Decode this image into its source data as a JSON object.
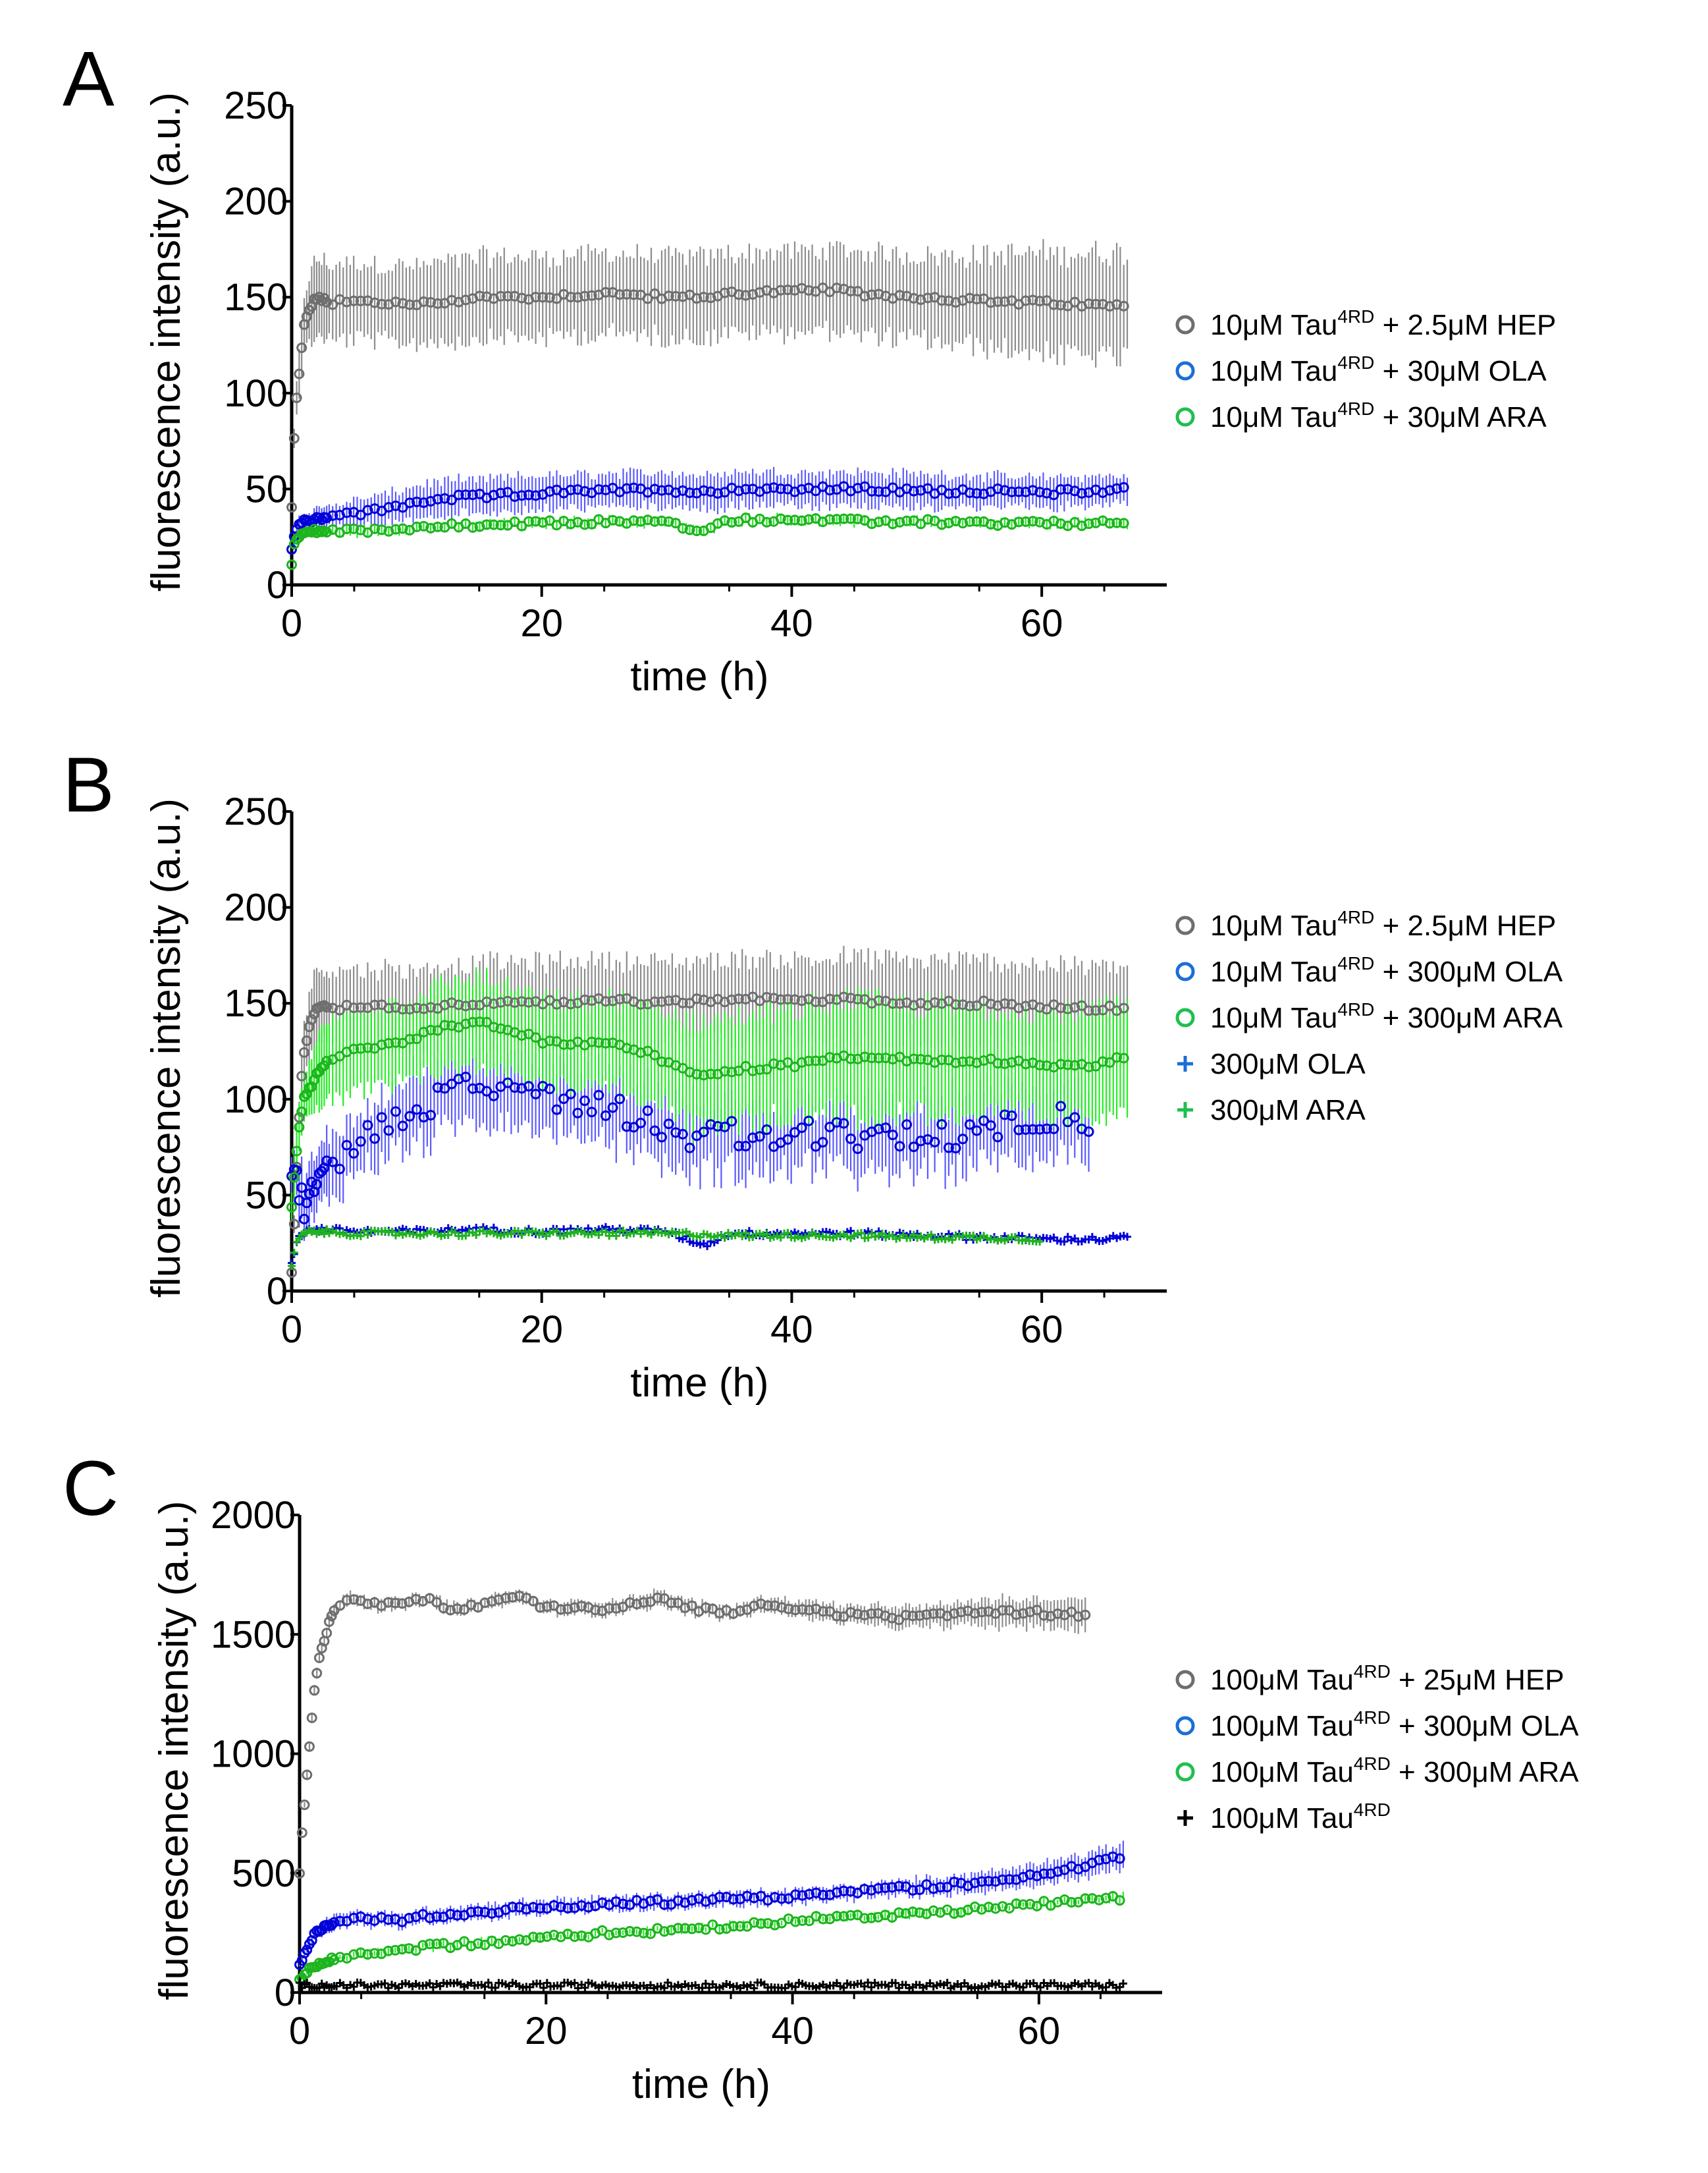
{
  "colors": {
    "hep": "#6e6e6e",
    "hep_err": "#8c8c8c",
    "ola": "#0000d8",
    "ola_err": "#5a5aff",
    "ara": "#1fb31f",
    "ara_err": "#22ee22",
    "control": "#000000",
    "axis": "#000000"
  },
  "chart_data": [
    {
      "panel": "A",
      "type": "scatter",
      "xlabel": "time (h)",
      "ylabel": "fluorescence intensity (a.u.)",
      "xlim": [
        0,
        70
      ],
      "ylim": [
        0,
        250
      ],
      "xticks": [
        0,
        20,
        40,
        60
      ],
      "yticks": [
        0,
        50,
        100,
        150,
        200,
        250
      ],
      "series": [
        {
          "key": "hep",
          "marker": "circle",
          "legend": {
            "pre": "10μM Tau",
            "sup": "4RD",
            "post": " + 2.5μM HEP"
          },
          "x": [
            0,
            0.25,
            0.5,
            0.75,
            1,
            1.5,
            2,
            3,
            5,
            10,
            15,
            20,
            25,
            30,
            33,
            35,
            40,
            43,
            45,
            50,
            55,
            60,
            67
          ],
          "y": [
            40,
            85,
            105,
            120,
            135,
            145,
            150,
            147,
            148,
            146,
            150,
            150,
            152,
            150,
            150,
            152,
            153,
            154,
            152,
            150,
            148,
            147,
            145
          ],
          "err": [
            0,
            5,
            10,
            12,
            15,
            18,
            20,
            20,
            20,
            20,
            21,
            21,
            21,
            21,
            21,
            21,
            21,
            21,
            22,
            22,
            24,
            26,
            28
          ]
        },
        {
          "key": "ola",
          "marker": "circle",
          "legend": {
            "pre": "10μM Tau",
            "sup": "4RD",
            "post": " + 30μM OLA"
          },
          "x": [
            0,
            0.25,
            0.5,
            1,
            2,
            5,
            8,
            10,
            12,
            15,
            20,
            25,
            30,
            33,
            35,
            40,
            45,
            50,
            55,
            60,
            67
          ],
          "y": [
            20,
            27,
            31,
            33,
            35,
            37,
            40,
            43,
            45,
            46,
            48,
            49,
            50,
            48,
            50,
            50,
            50,
            49,
            49,
            48,
            50
          ],
          "err": [
            0,
            3,
            4,
            4,
            5,
            7,
            8,
            9,
            9,
            9,
            9,
            9,
            9,
            9,
            9,
            9,
            9,
            9,
            8,
            8,
            7
          ]
        },
        {
          "key": "ara",
          "marker": "circle",
          "legend": {
            "pre": "10μM Tau",
            "sup": "4RD",
            "post": " + 30μM ARA"
          },
          "x": [
            0,
            0.25,
            0.5,
            1,
            2,
            5,
            10,
            15,
            20,
            25,
            30,
            33,
            35,
            40,
            45,
            50,
            55,
            60,
            67
          ],
          "y": [
            12,
            22,
            25,
            27,
            28,
            28,
            30,
            31,
            32,
            33,
            33,
            27,
            34,
            34,
            33,
            33,
            32,
            32,
            32
          ],
          "err": [
            0,
            2,
            2,
            2,
            2,
            2,
            2,
            2,
            2,
            2,
            2,
            2,
            2,
            2,
            2,
            2,
            2,
            2,
            2
          ]
        }
      ]
    },
    {
      "panel": "B",
      "type": "scatter",
      "xlabel": "time (h)",
      "ylabel": "fluorescence intensity (a.u.)",
      "xlim": [
        0,
        70
      ],
      "ylim": [
        0,
        250
      ],
      "xticks": [
        0,
        20,
        40,
        60
      ],
      "yticks": [
        0,
        50,
        100,
        150,
        200,
        250
      ],
      "series": [
        {
          "key": "hep",
          "marker": "circle",
          "legend": {
            "pre": "10μM Tau",
            "sup": "4RD",
            "post": " + 2.5μM HEP"
          },
          "x": [
            0,
            0.25,
            0.5,
            0.75,
            1,
            1.5,
            2,
            3,
            5,
            10,
            15,
            20,
            25,
            30,
            35,
            40,
            45,
            50,
            55,
            60,
            67
          ],
          "y": [
            10,
            40,
            80,
            110,
            125,
            140,
            148,
            147,
            148,
            148,
            150,
            150,
            152,
            150,
            152,
            152,
            152,
            150,
            150,
            148,
            147
          ],
          "err": [
            0,
            5,
            10,
            12,
            15,
            18,
            20,
            20,
            20,
            20,
            21,
            21,
            21,
            21,
            21,
            21,
            22,
            22,
            22,
            22,
            22
          ]
        },
        {
          "key": "ola",
          "marker": "circle",
          "legend": {
            "pre": "10μM Tau",
            "sup": "4RD",
            "post": " + 300μM OLA"
          },
          "x": [
            0,
            0.5,
            1,
            2,
            3,
            5,
            7,
            10,
            12,
            14,
            16,
            18,
            20,
            22,
            25,
            28,
            30,
            32,
            35,
            38,
            40,
            42,
            45,
            48,
            50,
            52,
            55,
            58,
            60,
            62,
            64
          ],
          "y": [
            65,
            55,
            45,
            55,
            65,
            75,
            85,
            95,
            100,
            110,
            105,
            108,
            103,
            100,
            98,
            90,
            85,
            80,
            82,
            78,
            80,
            82,
            80,
            78,
            82,
            80,
            85,
            88,
            90,
            92,
            86
          ],
          "err": [
            10,
            12,
            14,
            15,
            16,
            17,
            18,
            18,
            18,
            18,
            18,
            18,
            18,
            18,
            18,
            18,
            18,
            18,
            18,
            18,
            18,
            18,
            18,
            18,
            18,
            18,
            18,
            18,
            18,
            18,
            18
          ]
        },
        {
          "key": "ara",
          "marker": "circle",
          "legend": {
            "pre": "10μM Tau",
            "sup": "4RD",
            "post": " + 300μM ARA"
          },
          "x": [
            0,
            0.5,
            1,
            2,
            3,
            5,
            8,
            10,
            12,
            15,
            18,
            20,
            22,
            25,
            28,
            30,
            32,
            35,
            40,
            45,
            50,
            55,
            60,
            64,
            67
          ],
          "y": [
            45,
            80,
            100,
            112,
            120,
            125,
            128,
            132,
            138,
            140,
            135,
            130,
            128,
            130,
            125,
            120,
            112,
            115,
            118,
            122,
            120,
            120,
            118,
            118,
            122
          ],
          "err": [
            8,
            12,
            15,
            18,
            20,
            22,
            22,
            22,
            22,
            24,
            22,
            22,
            22,
            22,
            24,
            25,
            28,
            28,
            28,
            30,
            28,
            28,
            28,
            28,
            26
          ]
        },
        {
          "key": "ola_only",
          "marker": "plus",
          "color": "ola",
          "legend": {
            "pre": "300μM OLA",
            "sup": "",
            "post": ""
          },
          "x": [
            0,
            0.5,
            1,
            2,
            5,
            10,
            15,
            20,
            25,
            30,
            33,
            35,
            40,
            45,
            50,
            55,
            60,
            65,
            67
          ],
          "y": [
            15,
            28,
            31,
            32,
            31,
            31,
            32,
            31,
            32,
            31,
            24,
            30,
            30,
            30,
            29,
            28,
            27,
            27,
            28
          ],
          "err": [
            0,
            1,
            1,
            1,
            1,
            1,
            1,
            1,
            1,
            1,
            1,
            1,
            1,
            1,
            1,
            1,
            1,
            1,
            1
          ]
        },
        {
          "key": "ara_only",
          "marker": "plus",
          "color": "ara",
          "legend": {
            "pre": "300μM ARA",
            "sup": "",
            "post": ""
          },
          "x": [
            0,
            0.5,
            1,
            2,
            5,
            10,
            15,
            20,
            25,
            30,
            35,
            40,
            45,
            50,
            55,
            60
          ],
          "y": [
            14,
            27,
            30,
            31,
            30,
            30,
            30,
            30,
            30,
            30,
            29,
            29,
            29,
            28,
            28,
            27
          ],
          "err": [
            0,
            1,
            1,
            1,
            1,
            1,
            1,
            1,
            1,
            1,
            1,
            1,
            1,
            1,
            1,
            1
          ]
        }
      ]
    },
    {
      "panel": "C",
      "type": "scatter",
      "xlabel": "time (h)",
      "ylabel": "fluorescence intensity (a.u.)",
      "xlim": [
        0,
        70
      ],
      "ylim": [
        0,
        2000
      ],
      "xticks": [
        0,
        20,
        40,
        60
      ],
      "yticks": [
        0,
        500,
        1000,
        1500,
        2000
      ],
      "series": [
        {
          "key": "hep",
          "marker": "circle",
          "legend": {
            "pre": "100μM Tau",
            "sup": "4RD",
            "post": " + 25μM HEP"
          },
          "x": [
            0,
            0.25,
            0.5,
            0.75,
            1,
            1.25,
            1.5,
            2,
            2.5,
            3,
            4,
            6,
            8,
            10,
            13,
            15,
            18,
            20,
            25,
            29,
            32,
            35,
            38,
            40,
            45,
            50,
            55,
            60,
            64
          ],
          "y": [
            500,
            700,
            850,
            1000,
            1150,
            1280,
            1380,
            1480,
            1560,
            1620,
            1660,
            1630,
            1620,
            1650,
            1600,
            1630,
            1660,
            1610,
            1610,
            1650,
            1610,
            1590,
            1630,
            1610,
            1580,
            1570,
            1590,
            1590,
            1580
          ],
          "err": [
            0,
            10,
            15,
            20,
            20,
            20,
            20,
            20,
            25,
            25,
            25,
            25,
            25,
            25,
            25,
            25,
            25,
            25,
            30,
            30,
            30,
            30,
            30,
            35,
            40,
            45,
            55,
            60,
            70
          ]
        },
        {
          "key": "ola",
          "marker": "circle",
          "legend": {
            "pre": "100μM Tau",
            "sup": "4RD",
            "post": " + 300μM OLA"
          },
          "x": [
            0,
            1,
            2,
            3,
            5,
            8,
            10,
            15,
            20,
            25,
            30,
            35,
            40,
            45,
            50,
            55,
            58,
            60,
            62,
            64,
            66,
            67
          ],
          "y": [
            120,
            230,
            280,
            300,
            310,
            300,
            320,
            340,
            360,
            370,
            380,
            390,
            400,
            420,
            440,
            460,
            480,
            500,
            520,
            530,
            560,
            580
          ],
          "err": [
            10,
            20,
            30,
            30,
            30,
            30,
            30,
            30,
            30,
            30,
            30,
            30,
            30,
            30,
            35,
            40,
            40,
            45,
            45,
            50,
            50,
            50
          ]
        },
        {
          "key": "ara",
          "marker": "circle",
          "legend": {
            "pre": "100μM Tau",
            "sup": "4RD",
            "post": " + 300μM ARA"
          },
          "x": [
            0,
            1,
            2,
            5,
            10,
            15,
            20,
            25,
            30,
            35,
            40,
            45,
            50,
            55,
            60,
            65,
            67
          ],
          "y": [
            60,
            100,
            130,
            160,
            190,
            210,
            230,
            250,
            260,
            280,
            300,
            320,
            330,
            350,
            370,
            390,
            400
          ],
          "err": [
            5,
            10,
            10,
            12,
            12,
            12,
            12,
            12,
            12,
            12,
            12,
            12,
            12,
            12,
            12,
            12,
            12
          ]
        },
        {
          "key": "control",
          "marker": "plus",
          "legend": {
            "pre": "100μM Tau",
            "sup": "4RD",
            "post": ""
          },
          "x": [
            0,
            5,
            10,
            15,
            20,
            25,
            30,
            35,
            40,
            45,
            50,
            55,
            60,
            65,
            67
          ],
          "y": [
            30,
            30,
            30,
            30,
            30,
            30,
            30,
            30,
            30,
            30,
            30,
            30,
            30,
            30,
            30
          ],
          "err": [
            0,
            0,
            0,
            0,
            0,
            0,
            0,
            0,
            0,
            0,
            0,
            0,
            0,
            0,
            0
          ]
        }
      ]
    }
  ]
}
